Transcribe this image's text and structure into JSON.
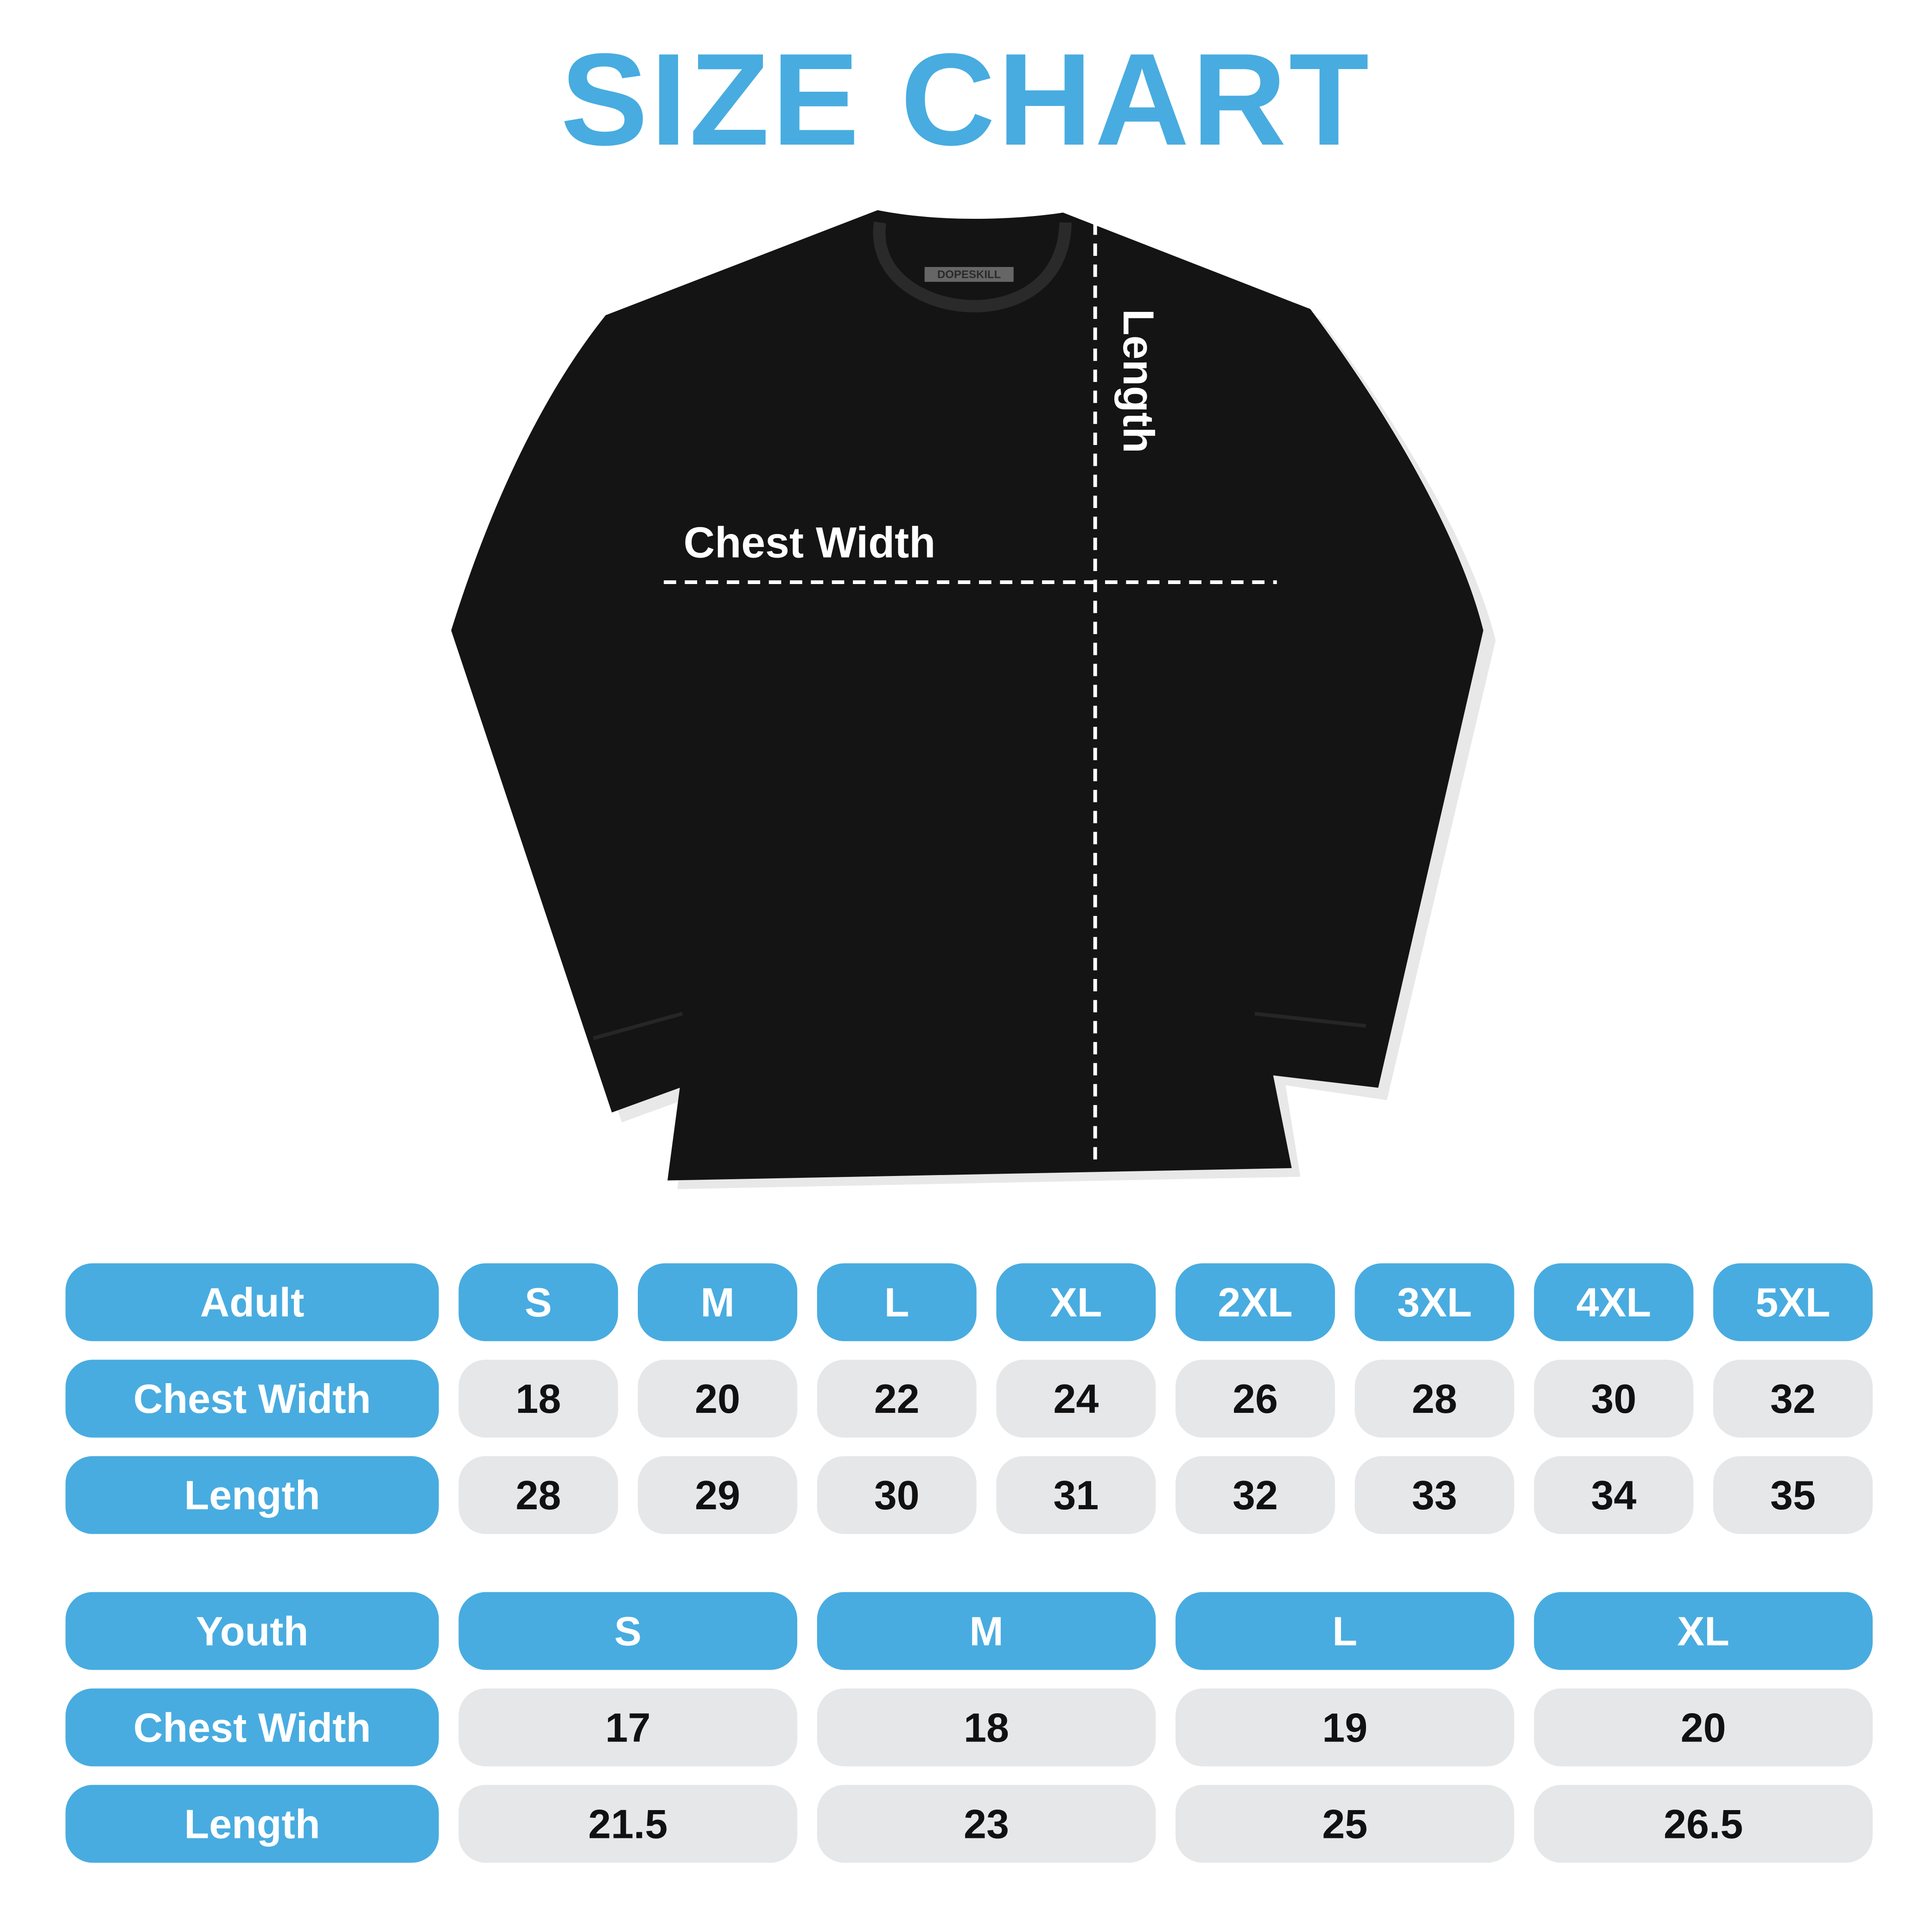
{
  "title": "SIZE CHART",
  "brand_label": "DOPESKILL",
  "colors": {
    "accent": "#48ACE0",
    "cell_gray": "#E6E7E9",
    "shirt": "#141414"
  },
  "diagram": {
    "chest_label": "Chest Width",
    "length_label": "Length"
  },
  "adult": {
    "header": "Adult",
    "sizes": [
      "S",
      "M",
      "L",
      "XL",
      "2XL",
      "3XL",
      "4XL",
      "5XL"
    ],
    "rows": [
      {
        "label": "Chest Width",
        "values": [
          "18",
          "20",
          "22",
          "24",
          "26",
          "28",
          "30",
          "32"
        ]
      },
      {
        "label": "Length",
        "values": [
          "28",
          "29",
          "30",
          "31",
          "32",
          "33",
          "34",
          "35"
        ]
      }
    ]
  },
  "youth": {
    "header": "Youth",
    "sizes": [
      "S",
      "M",
      "L",
      "XL"
    ],
    "rows": [
      {
        "label": "Chest Width",
        "values": [
          "17",
          "18",
          "19",
          "20"
        ]
      },
      {
        "label": "Length",
        "values": [
          "21.5",
          "23",
          "25",
          "26.5"
        ]
      }
    ]
  }
}
